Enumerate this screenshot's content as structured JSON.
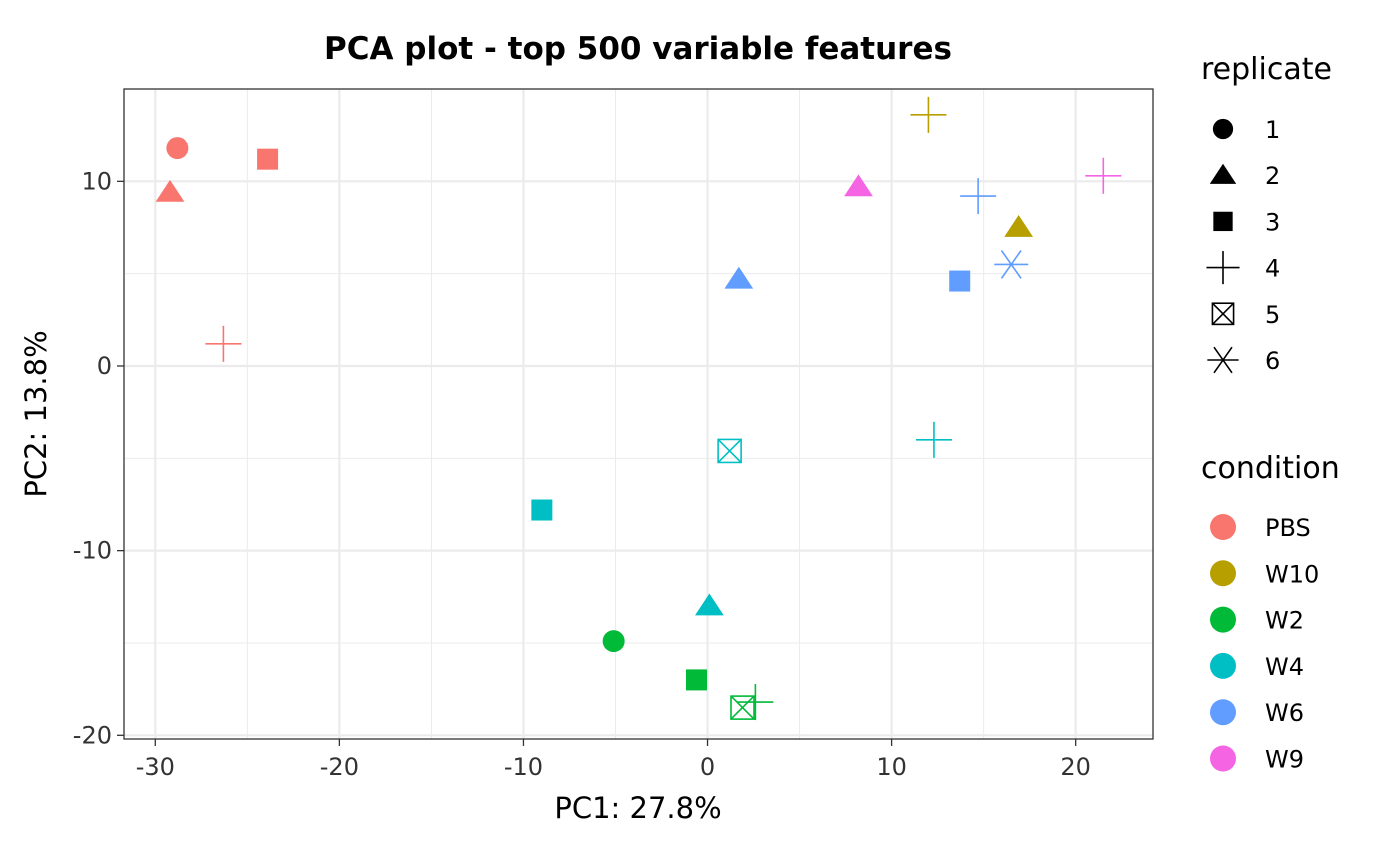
{
  "chart_data": {
    "type": "scatter",
    "title": "PCA plot - top 500 variable features",
    "xlabel": "PC1: 27.8%",
    "ylabel": "PC2: 13.8%",
    "xlim": [
      -31.7,
      24.2
    ],
    "ylim": [
      -20.2,
      15.0
    ],
    "x_ticks": [
      -30,
      -20,
      -10,
      0,
      10,
      20
    ],
    "x_tick_labels": [
      "-30",
      "-20",
      "-10",
      "0",
      "10",
      "20"
    ],
    "y_ticks": [
      -20,
      -10,
      0,
      10
    ],
    "y_tick_labels": [
      "-20",
      "-10",
      "0",
      "10"
    ],
    "grid": true,
    "legend_placement": "right",
    "shape_legend": {
      "title": "replicate",
      "items": [
        {
          "label": "1",
          "shape": "circle"
        },
        {
          "label": "2",
          "shape": "triangle"
        },
        {
          "label": "3",
          "shape": "square"
        },
        {
          "label": "4",
          "shape": "plus"
        },
        {
          "label": "5",
          "shape": "boxx"
        },
        {
          "label": "6",
          "shape": "asterisk"
        }
      ]
    },
    "color_legend": {
      "title": "condition",
      "items": [
        {
          "label": "PBS",
          "color": "#F8766D"
        },
        {
          "label": "W10",
          "color": "#B79F00"
        },
        {
          "label": "W2",
          "color": "#00BA38"
        },
        {
          "label": "W4",
          "color": "#00BFC4"
        },
        {
          "label": "W6",
          "color": "#619CFF"
        },
        {
          "label": "W9",
          "color": "#F564E3"
        }
      ]
    },
    "points": [
      {
        "x": -28.8,
        "y": 11.8,
        "condition": "PBS",
        "replicate": "1"
      },
      {
        "x": -29.2,
        "y": 9.4,
        "condition": "PBS",
        "replicate": "2"
      },
      {
        "x": -23.9,
        "y": 11.2,
        "condition": "PBS",
        "replicate": "3"
      },
      {
        "x": -26.3,
        "y": 1.2,
        "condition": "PBS",
        "replicate": "4"
      },
      {
        "x": 16.9,
        "y": 7.5,
        "condition": "W10",
        "replicate": "2"
      },
      {
        "x": 12.0,
        "y": 13.6,
        "condition": "W10",
        "replicate": "4"
      },
      {
        "x": -5.1,
        "y": -14.9,
        "condition": "W2",
        "replicate": "1"
      },
      {
        "x": -0.6,
        "y": -17.0,
        "condition": "W2",
        "replicate": "3"
      },
      {
        "x": 2.6,
        "y": -18.2,
        "condition": "W2",
        "replicate": "4"
      },
      {
        "x": 1.9,
        "y": -18.5,
        "condition": "W2",
        "replicate": "5"
      },
      {
        "x": 0.1,
        "y": -13.0,
        "condition": "W4",
        "replicate": "2"
      },
      {
        "x": -9.0,
        "y": -7.8,
        "condition": "W4",
        "replicate": "3"
      },
      {
        "x": 12.3,
        "y": -4.0,
        "condition": "W4",
        "replicate": "4"
      },
      {
        "x": 1.2,
        "y": -4.6,
        "condition": "W4",
        "replicate": "5"
      },
      {
        "x": 1.7,
        "y": 4.7,
        "condition": "W6",
        "replicate": "2"
      },
      {
        "x": 13.7,
        "y": 4.6,
        "condition": "W6",
        "replicate": "3"
      },
      {
        "x": 14.7,
        "y": 9.2,
        "condition": "W6",
        "replicate": "4"
      },
      {
        "x": 16.5,
        "y": 5.5,
        "condition": "W6",
        "replicate": "6"
      },
      {
        "x": 8.2,
        "y": 9.7,
        "condition": "W9",
        "replicate": "2"
      },
      {
        "x": 21.5,
        "y": 10.3,
        "condition": "W9",
        "replicate": "4"
      }
    ]
  }
}
